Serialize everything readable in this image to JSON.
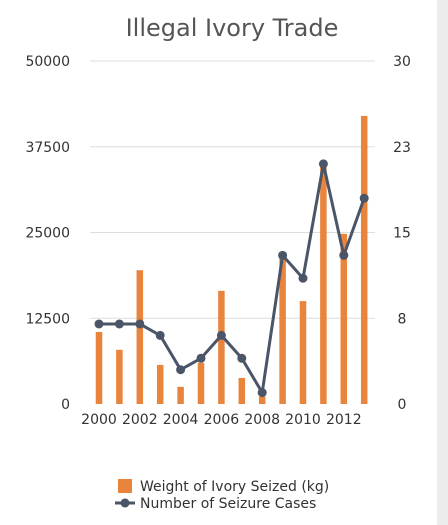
{
  "chart_data": {
    "type": "bar",
    "title": "Illegal Ivory Trade",
    "categories": [
      "2000",
      "2001",
      "2002",
      "2003",
      "2004",
      "2005",
      "2006",
      "2007",
      "2008",
      "2009",
      "2010",
      "2011",
      "2012",
      "2013"
    ],
    "x_tick_labels": [
      "2000",
      "2002",
      "2004",
      "2006",
      "2008",
      "2010",
      "2012"
    ],
    "series": [
      {
        "name": "Weight of Ivory Seized (kg)",
        "type": "bar",
        "axis": "left",
        "color": "#e8843c",
        "values": [
          10500,
          7900,
          19500,
          5700,
          2500,
          6000,
          16500,
          3800,
          1100,
          22000,
          15000,
          35000,
          24800,
          42000
        ]
      },
      {
        "name": "Number of Seizure Cases",
        "type": "line",
        "axis": "right",
        "color": "#4a5568",
        "values": [
          7,
          7,
          7,
          6,
          3,
          4,
          6,
          4,
          1,
          13,
          11,
          21,
          13,
          18
        ]
      }
    ],
    "y_left": {
      "lim": [
        0,
        50000
      ],
      "ticks": [
        0,
        12500,
        25000,
        37500,
        50000
      ],
      "tick_labels": [
        "0",
        "12500",
        "25000",
        "37500",
        "50000"
      ]
    },
    "y_right": {
      "lim": [
        0,
        30
      ],
      "ticks": [
        0,
        7.5,
        15,
        22.5,
        30
      ],
      "tick_labels": [
        "0",
        "8",
        "15",
        "23",
        "30"
      ]
    },
    "grid": true,
    "legend_position": "bottom"
  }
}
